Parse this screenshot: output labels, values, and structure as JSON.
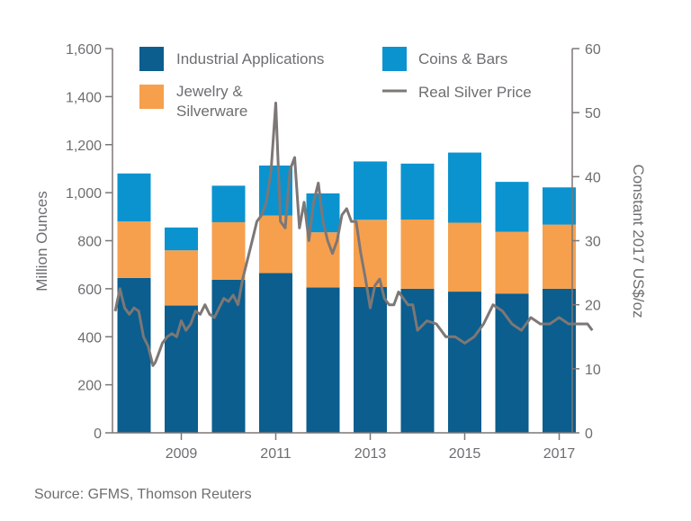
{
  "chart_data": {
    "type": "bar",
    "stacked": true,
    "categories": [
      "2008",
      "2009",
      "2010",
      "2011",
      "2012",
      "2013",
      "2014",
      "2015",
      "2016",
      "2017"
    ],
    "x_tick_labels": [
      "2009",
      "2011",
      "2013",
      "2015",
      "2017"
    ],
    "series": [
      {
        "name": "Industrial Applications",
        "color": "#0b5e8e",
        "values": [
          645,
          530,
          637,
          665,
          605,
          607,
          600,
          588,
          580,
          600
        ]
      },
      {
        "name": "Jewelry & Silverware",
        "color": "#f6a04d",
        "values": [
          235,
          230,
          240,
          240,
          230,
          280,
          288,
          287,
          257,
          267
        ]
      },
      {
        "name": "Coins & Bars",
        "color": "#0b93cf",
        "values": [
          200,
          95,
          152,
          208,
          162,
          243,
          233,
          292,
          208,
          155
        ]
      }
    ],
    "line_series": {
      "name": "Real Silver Price",
      "color": "#7d7776",
      "axis": "right",
      "x": [
        2007.6,
        2007.7,
        2007.8,
        2007.9,
        2008.0,
        2008.1,
        2008.2,
        2008.3,
        2008.4,
        2008.45,
        2008.5,
        2008.6,
        2008.7,
        2008.8,
        2008.9,
        2009.0,
        2009.1,
        2009.2,
        2009.3,
        2009.4,
        2009.5,
        2009.6,
        2009.7,
        2009.8,
        2009.9,
        2010.0,
        2010.1,
        2010.2,
        2010.3,
        2010.4,
        2010.5,
        2010.6,
        2010.7,
        2010.8,
        2010.9,
        2011.0,
        2011.1,
        2011.2,
        2011.3,
        2011.4,
        2011.5,
        2011.6,
        2011.7,
        2011.8,
        2011.9,
        2012.0,
        2012.1,
        2012.2,
        2012.3,
        2012.4,
        2012.5,
        2012.6,
        2012.7,
        2012.8,
        2012.9,
        2013.0,
        2013.1,
        2013.2,
        2013.3,
        2013.4,
        2013.5,
        2013.6,
        2013.7,
        2013.8,
        2013.9,
        2014.0,
        2014.2,
        2014.4,
        2014.6,
        2014.8,
        2015.0,
        2015.2,
        2015.4,
        2015.6,
        2015.8,
        2016.0,
        2016.2,
        2016.4,
        2016.6,
        2016.8,
        2017.0,
        2017.2,
        2017.4,
        2017.6,
        2017.7
      ],
      "values": [
        19,
        22.5,
        19.5,
        18.5,
        19.5,
        19,
        15,
        13.5,
        10.5,
        11,
        12,
        14,
        15,
        15.5,
        15,
        17.5,
        16,
        17,
        19,
        18.5,
        20,
        18.5,
        18,
        19.5,
        21,
        20.5,
        21.5,
        20,
        24,
        27,
        30,
        33,
        34,
        36,
        41,
        51.5,
        33,
        32,
        41,
        43,
        32,
        36,
        30,
        36,
        39,
        33,
        30,
        28,
        30,
        34,
        35,
        33,
        33,
        28,
        24,
        19.5,
        23,
        24,
        21,
        20,
        20,
        22,
        21,
        20,
        20,
        16,
        17.5,
        17,
        15,
        15,
        14,
        15,
        17,
        20,
        19,
        17,
        16,
        18,
        17,
        17,
        18,
        17,
        17,
        17,
        16
      ],
      "ylim": [
        0,
        60
      ],
      "yticks": [
        0,
        10,
        20,
        30,
        40,
        50,
        60
      ]
    },
    "ylabel": "Million Ounces",
    "ylabel_right": "Constant 2017 US$/oz",
    "ylim": [
      0,
      1600
    ],
    "yticks": [
      0,
      200,
      400,
      600,
      800,
      1000,
      1200,
      1400,
      1600
    ],
    "ytick_labels": [
      "0",
      "200",
      "400",
      "600",
      "800",
      "1,000",
      "1,200",
      "1,400",
      "1,600"
    ],
    "grid": false,
    "legend": {
      "placement": "top",
      "items": [
        {
          "label": "Industrial Applications",
          "type": "box",
          "color": "#0b5e8e"
        },
        {
          "label": "Coins & Bars",
          "type": "box",
          "color": "#0b93cf"
        },
        {
          "label_lines": [
            "Jewelry &",
            "Silverware"
          ],
          "type": "box",
          "color": "#f6a04d"
        },
        {
          "label": "Real Silver Price",
          "type": "line",
          "color": "#7d7776"
        }
      ]
    }
  },
  "source": "Source: GFMS, Thomson Reuters"
}
